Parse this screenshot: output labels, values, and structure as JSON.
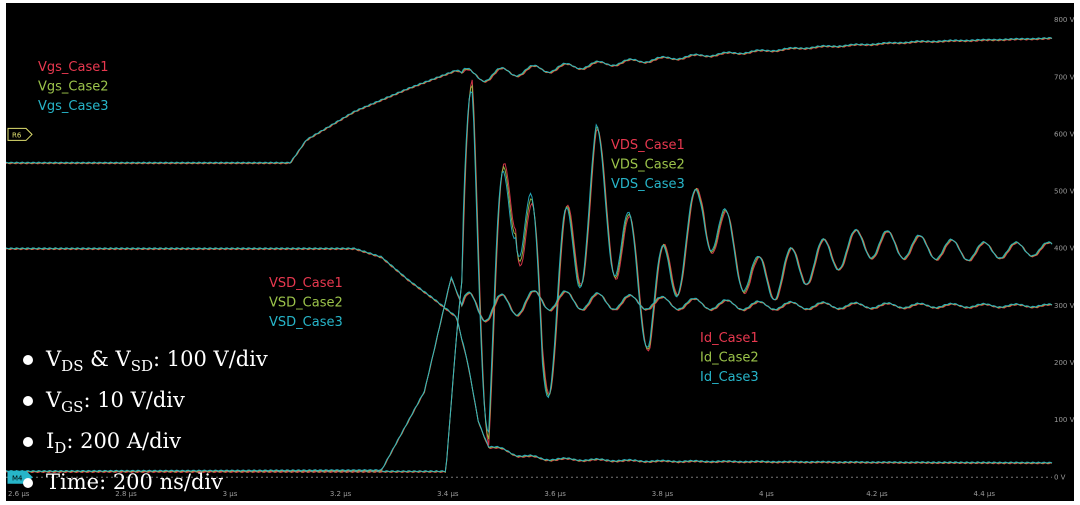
{
  "chart_data": {
    "type": "line",
    "title": "",
    "xlabel": "",
    "ylabel": "",
    "x_unit": "us",
    "xlim": [
      2.6,
      4.55
    ],
    "ylim_right": [
      -10,
      830
    ],
    "grid": false,
    "background": "#000000",
    "x_ticks": [
      {
        "value": 2.6,
        "label": "2.6 µs"
      },
      {
        "value": 2.8,
        "label": "2.8 µs"
      },
      {
        "value": 3.0,
        "label": "3 µs"
      },
      {
        "value": 3.2,
        "label": "3.2 µs"
      },
      {
        "value": 3.4,
        "label": "3.4 µs"
      },
      {
        "value": 3.6,
        "label": "3.6 µs"
      },
      {
        "value": 3.8,
        "label": "3.8 µs"
      },
      {
        "value": 4.0,
        "label": "4 µs"
      },
      {
        "value": 4.2,
        "label": "4.2 µs"
      },
      {
        "value": 4.4,
        "label": "4.4 µs"
      }
    ],
    "y_ticks_right": [
      {
        "value": 800,
        "label": "800 V"
      },
      {
        "value": 700,
        "label": "700 V"
      },
      {
        "value": 600,
        "label": "600 V"
      },
      {
        "value": 500,
        "label": "500 V"
      },
      {
        "value": 400,
        "label": "400 V"
      },
      {
        "value": 300,
        "label": "300 V"
      },
      {
        "value": 200,
        "label": "200 V"
      },
      {
        "value": 100,
        "label": "100 V"
      },
      {
        "value": 0,
        "label": "0 V"
      }
    ],
    "colors": {
      "case1": "#e8384f",
      "case2": "#9bc34a",
      "case3": "#27b5c9"
    },
    "markers": [
      {
        "label": "R6",
        "value": 600
      },
      {
        "label": "M4",
        "value": 0
      }
    ],
    "series_groups": [
      {
        "legend": [
          "Vgs_Case1",
          "Vgs_Case2",
          "Vgs_Case3"
        ],
        "points": [
          [
            2.6,
            550
          ],
          [
            3.13,
            550
          ],
          [
            3.16,
            590
          ],
          [
            3.25,
            640
          ],
          [
            3.35,
            680
          ],
          [
            3.44,
            712
          ],
          [
            3.47,
            700
          ],
          [
            3.55,
            710
          ],
          [
            3.7,
            722
          ],
          [
            3.9,
            738
          ],
          [
            4.1,
            752
          ],
          [
            4.3,
            762
          ],
          [
            4.55,
            768
          ]
        ]
      },
      {
        "legend": [
          "VDS_Case1",
          "VDS_Case2",
          "VDS_Case3"
        ],
        "points": [
          [
            2.6,
            400
          ],
          [
            3.25,
            400
          ],
          [
            3.3,
            385
          ],
          [
            3.35,
            345
          ],
          [
            3.4,
            310
          ],
          [
            3.44,
            280
          ],
          [
            3.46,
            200
          ],
          [
            3.48,
            100
          ],
          [
            3.5,
            55
          ],
          [
            3.55,
            40
          ],
          [
            3.6,
            32
          ],
          [
            3.8,
            28
          ],
          [
            4.2,
            26
          ],
          [
            4.55,
            25
          ]
        ]
      },
      {
        "legend": [
          "VSD_Case1",
          "VSD_Case2",
          "VSD_Case3"
        ],
        "points": [
          [
            2.6,
            10
          ],
          [
            3.42,
            10
          ],
          [
            3.44,
            250
          ],
          [
            3.47,
            540
          ],
          [
            3.5,
            200
          ],
          [
            3.55,
            560
          ],
          [
            3.6,
            230
          ],
          [
            3.7,
            520
          ],
          [
            3.8,
            290
          ],
          [
            3.9,
            470
          ],
          [
            4.0,
            340
          ],
          [
            4.2,
            410
          ],
          [
            4.4,
            395
          ],
          [
            4.55,
            400
          ]
        ]
      },
      {
        "legend": [
          "Id_Case1",
          "Id_Case2",
          "Id_Case3"
        ],
        "points": [
          [
            2.6,
            10
          ],
          [
            3.3,
            12
          ],
          [
            3.38,
            150
          ],
          [
            3.43,
            350
          ],
          [
            3.45,
            300
          ],
          [
            3.5,
            295
          ],
          [
            3.6,
            310
          ],
          [
            3.8,
            305
          ],
          [
            4.0,
            300
          ],
          [
            4.3,
            300
          ],
          [
            4.55,
            300
          ]
        ]
      }
    ]
  },
  "notes": [
    {
      "main": "V",
      "sub": "DS",
      "mid": " & V",
      "sub2": "SD",
      "rest": ": 100 V/div"
    },
    {
      "main": "V",
      "sub": "GS",
      "mid": ": 10 V/div",
      "sub2": "",
      "rest": ""
    },
    {
      "main": "I",
      "sub": "D",
      "mid": ": 200 A/div",
      "sub2": "",
      "rest": ""
    },
    {
      "main": "Time: 200 ns/div",
      "sub": "",
      "mid": "",
      "sub2": "",
      "rest": ""
    }
  ]
}
